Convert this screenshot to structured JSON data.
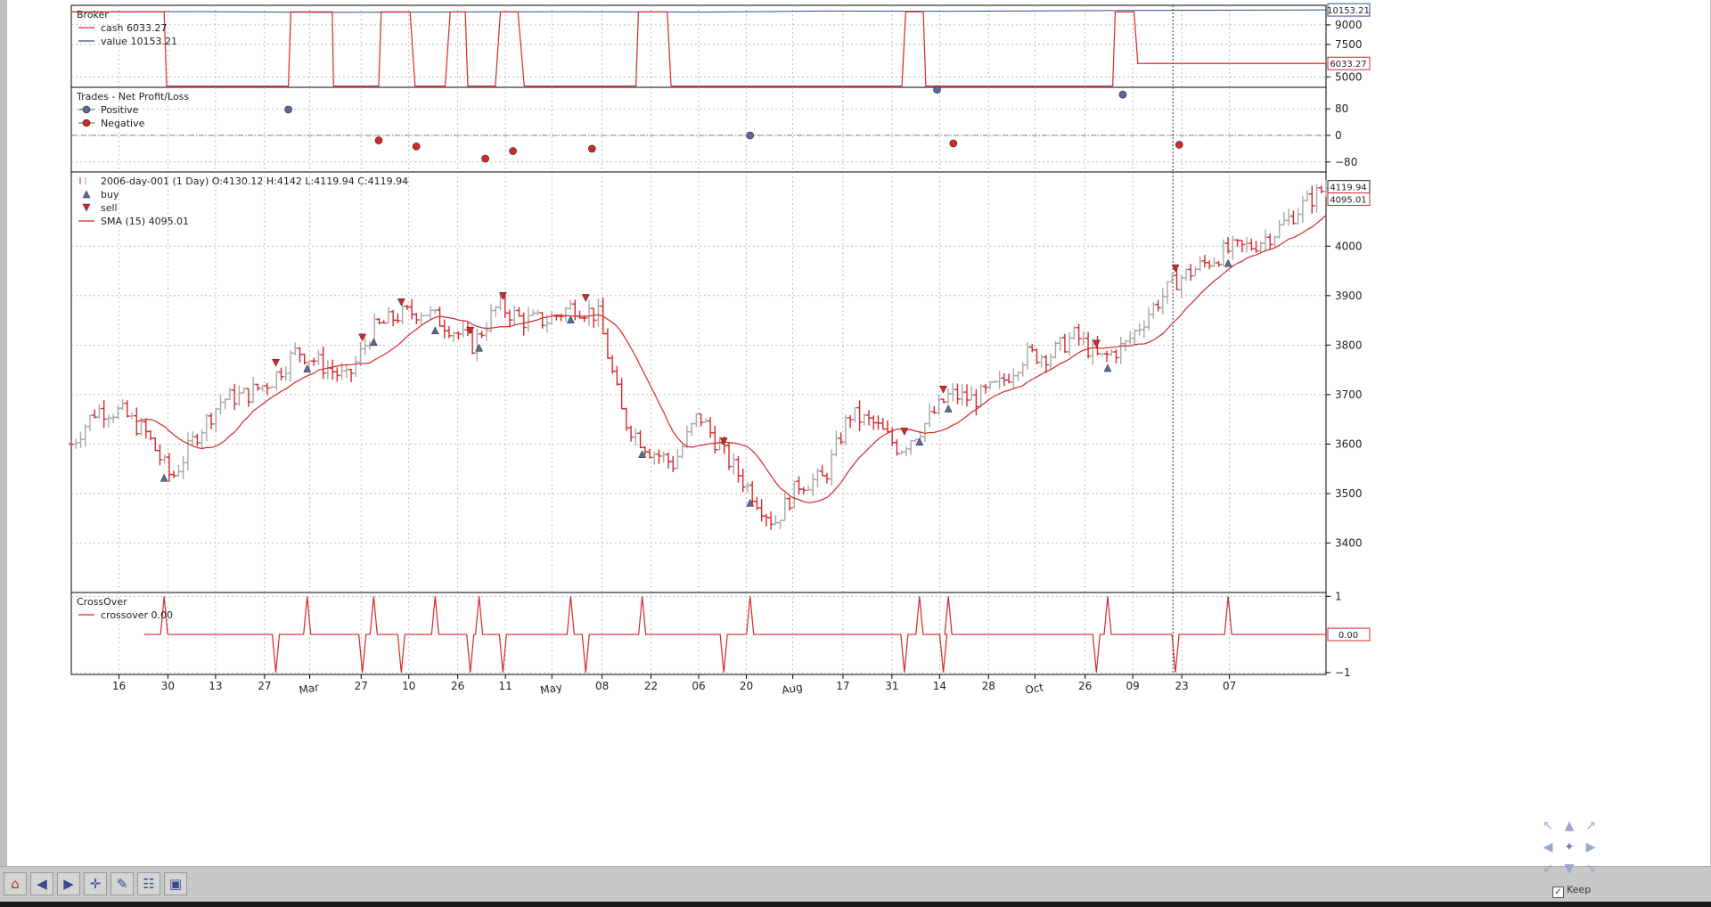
{
  "chart_data": [
    {
      "type": "line",
      "title": "Broker",
      "legend": [
        {
          "name": "cash 6033.27",
          "color": "#d62728"
        },
        {
          "name": "value 10153.21",
          "color": "#3b4a8c"
        }
      ],
      "y_ticks": [
        "9000",
        "7500",
        "5000"
      ],
      "y_tick_values": [
        9000,
        7500,
        5000
      ],
      "ylim": [
        4200,
        10500
      ],
      "last_value_labels": [
        {
          "text": "10153.21",
          "value": 10153.21,
          "color": "#3b4a8c"
        },
        {
          "text": "6033.27",
          "value": 6033.27,
          "color": "#d62728"
        }
      ],
      "cash_x": [
        0,
        0.074,
        0.076,
        0.173,
        0.175,
        0.208,
        0.209,
        0.245,
        0.247,
        0.27,
        0.274,
        0.298,
        0.302,
        0.314,
        0.316,
        0.338,
        0.342,
        0.356,
        0.361,
        0.45,
        0.452,
        0.475,
        0.478,
        0.662,
        0.665,
        0.679,
        0.681,
        0.83,
        0.832,
        0.847,
        0.85,
        0.966,
        0.969,
        1
      ],
      "cash_y": [
        10000,
        10000,
        4300,
        4300,
        10000,
        10000,
        4300,
        4300,
        10000,
        10000,
        4300,
        4300,
        10000,
        10000,
        4300,
        4300,
        10000,
        10000,
        4300,
        4300,
        10000,
        10000,
        4300,
        4300,
        10000,
        10000,
        4300,
        4300,
        10000,
        10000,
        6033,
        6033,
        6033,
        6033
      ],
      "value_x": [
        0,
        0.1,
        0.2,
        0.3,
        0.4,
        0.5,
        0.6,
        0.7,
        0.8,
        0.9,
        1
      ],
      "value_y": [
        10000,
        10020,
        9960,
        9990,
        10010,
        9980,
        10060,
        10040,
        10090,
        10120,
        10153
      ]
    },
    {
      "type": "scatter",
      "title": "Trades - Net Profit/Loss",
      "legend": [
        {
          "name": "Positive",
          "color": "#5a6a9a"
        },
        {
          "name": "Negative",
          "color": "#d62728"
        }
      ],
      "y_ticks": [
        "80",
        "0",
        "−80"
      ],
      "y_tick_values": [
        80,
        0,
        -80
      ],
      "ylim": [
        -110,
        145
      ],
      "positive": {
        "x": [
          0.173,
          0.541,
          0.69,
          0.838
        ],
        "y": [
          78,
          0,
          138,
          123
        ]
      },
      "negative": {
        "x": [
          0.245,
          0.275,
          0.33,
          0.352,
          0.415,
          0.703,
          0.883
        ],
        "y": [
          -15,
          -33,
          -70,
          -47,
          -40,
          -24,
          -28
        ]
      }
    },
    {
      "type": "ohlc",
      "title": "2006-day-001 (1 Day) O:4130.12 H:4142 L:4119.94 C:4119.94",
      "legend": [
        {
          "name": "buy",
          "color": "#5a6a9a"
        },
        {
          "name": "sell",
          "color": "#d62728"
        },
        {
          "name": "SMA (15) 4095.01",
          "color": "#d62728"
        }
      ],
      "y_ticks": [
        "4000",
        "3900",
        "3800",
        "3700",
        "3600",
        "3500",
        "3400"
      ],
      "y_tick_values": [
        4000,
        3900,
        3800,
        3700,
        3600,
        3500,
        3400
      ],
      "ylim": [
        3300,
        4150
      ],
      "last_value_labels": [
        {
          "text": "4119.94",
          "value": 4119.94,
          "color": "#222222"
        },
        {
          "text": "4095.01",
          "value": 4095.01,
          "color": "#d62728"
        }
      ],
      "close_x": [
        0,
        0.02,
        0.04,
        0.06,
        0.08,
        0.1,
        0.12,
        0.14,
        0.16,
        0.18,
        0.2,
        0.22,
        0.24,
        0.26,
        0.28,
        0.3,
        0.32,
        0.34,
        0.36,
        0.38,
        0.4,
        0.42,
        0.44,
        0.46,
        0.48,
        0.5,
        0.52,
        0.54,
        0.56,
        0.58,
        0.6,
        0.62,
        0.64,
        0.66,
        0.68,
        0.7,
        0.72,
        0.74,
        0.76,
        0.78,
        0.8,
        0.82,
        0.84,
        0.86,
        0.88,
        0.9,
        0.92,
        0.94,
        0.96,
        0.98,
        1
      ],
      "close_y": [
        3600,
        3670,
        3665,
        3620,
        3530,
        3620,
        3690,
        3700,
        3730,
        3790,
        3760,
        3730,
        3830,
        3860,
        3870,
        3840,
        3800,
        3880,
        3850,
        3850,
        3880,
        3860,
        3650,
        3590,
        3560,
        3660,
        3580,
        3510,
        3440,
        3520,
        3530,
        3660,
        3640,
        3590,
        3640,
        3700,
        3690,
        3720,
        3780,
        3780,
        3820,
        3770,
        3800,
        3870,
        3930,
        3960,
        3990,
        4000,
        4030,
        4080,
        4120
      ]
    },
    {
      "type": "line",
      "title": "CrossOver",
      "legend": [
        {
          "name": "crossover 0.00",
          "color": "#d62728"
        }
      ],
      "y_ticks": [
        "1",
        "−1"
      ],
      "y_tick_values": [
        1,
        -1
      ],
      "ylim": [
        -1.05,
        1.1
      ],
      "last_value_labels": [
        {
          "text": "0.00",
          "value": 0,
          "color": "#d62728"
        }
      ],
      "spikes_up": [
        0.074,
        0.188,
        0.241,
        0.29,
        0.325,
        0.398,
        0.455,
        0.541,
        0.676,
        0.699,
        0.826,
        0.922
      ],
      "spikes_down": [
        0.163,
        0.232,
        0.263,
        0.318,
        0.344,
        0.41,
        0.52,
        0.664,
        0.695,
        0.817,
        0.88
      ]
    }
  ],
  "x_axis": {
    "ticks": [
      "16",
      "30",
      "13",
      "27",
      "Mar",
      "27",
      "10",
      "26",
      "11",
      "May",
      "08",
      "22",
      "06",
      "20",
      "Aug",
      "17",
      "31",
      "14",
      "28",
      "Oct",
      "26",
      "09",
      "23",
      "07"
    ],
    "tick_fractions": [
      0.038,
      0.077,
      0.115,
      0.154,
      0.19,
      0.231,
      0.269,
      0.308,
      0.346,
      0.383,
      0.423,
      0.462,
      0.5,
      0.538,
      0.575,
      0.615,
      0.654,
      0.692,
      0.731,
      0.768,
      0.808,
      0.846,
      0.885,
      0.923
    ],
    "vertical_marker_fraction": 0.878
  },
  "toolbar": {
    "buttons": [
      {
        "name": "home-button",
        "icon": "home-icon",
        "glyph": "⌂"
      },
      {
        "name": "back-button",
        "icon": "arrow-left-icon",
        "glyph": "◀"
      },
      {
        "name": "forward-button",
        "icon": "arrow-right-icon",
        "glyph": "▶"
      },
      {
        "name": "pan-button",
        "icon": "move-icon",
        "glyph": "✛"
      },
      {
        "name": "zoom-button",
        "icon": "zoom-icon",
        "glyph": "✎"
      },
      {
        "name": "configure-button",
        "icon": "configure-icon",
        "glyph": "☷"
      },
      {
        "name": "save-button",
        "icon": "save-icon",
        "glyph": "▣"
      }
    ],
    "keep_label": "Keep"
  }
}
